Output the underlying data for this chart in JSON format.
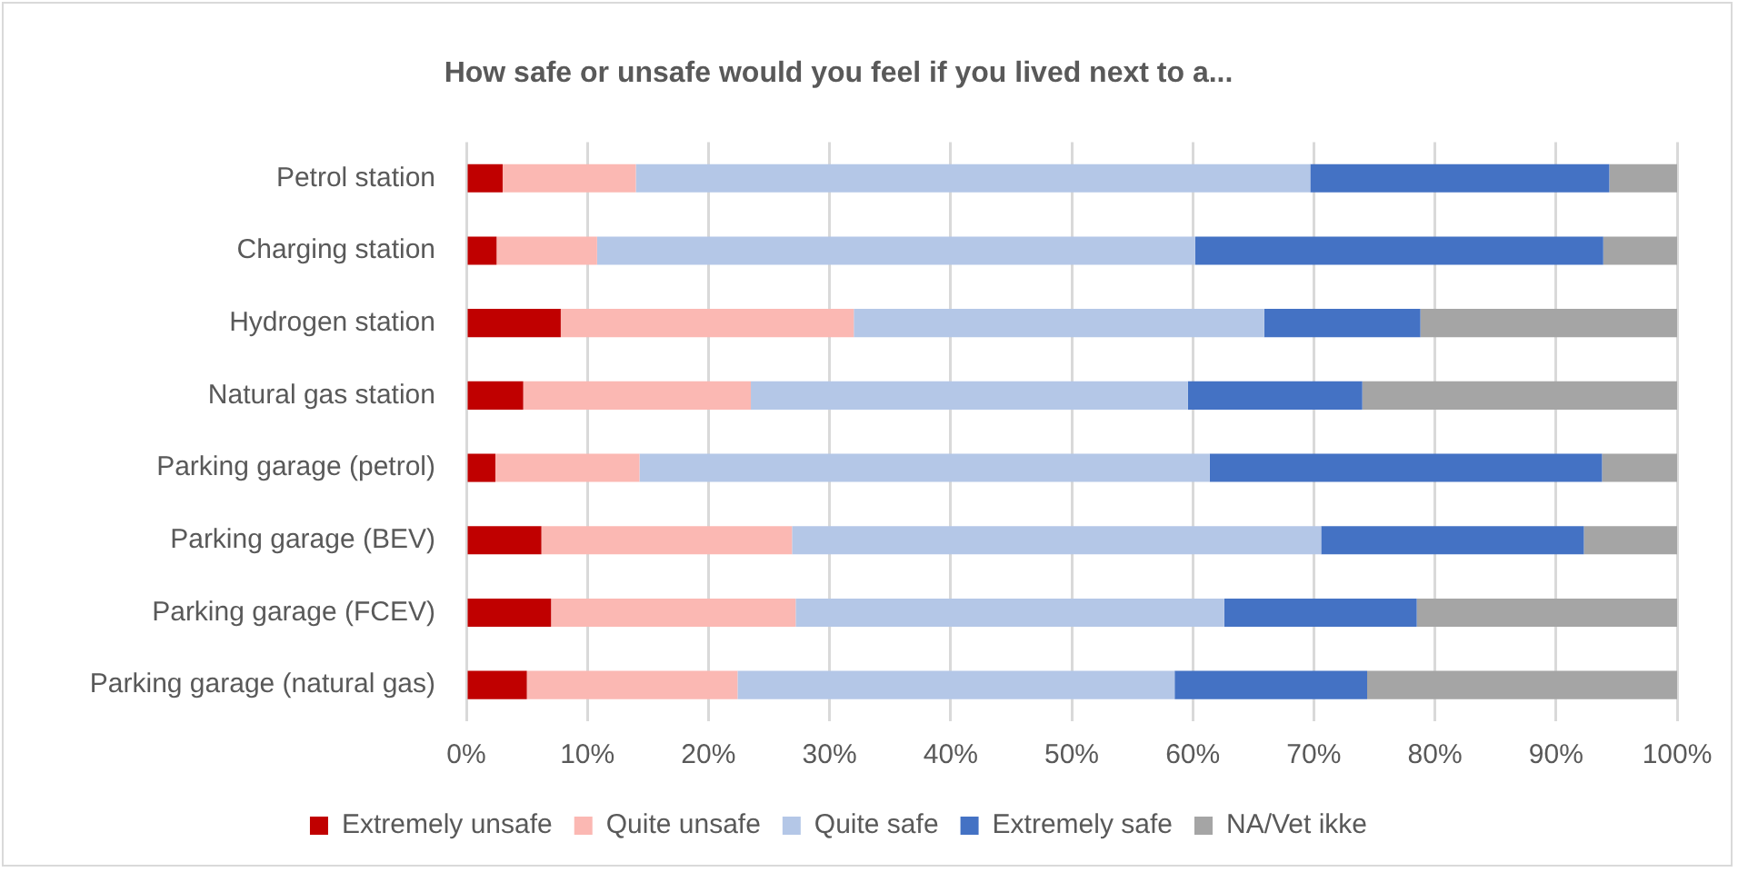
{
  "chart_data": {
    "type": "bar",
    "orientation": "horizontal",
    "stacked": true,
    "title": "How safe or unsafe would you feel if you lived next to a...",
    "categories": [
      "Petrol station",
      "Charging station",
      "Hydrogen station",
      "Natural gas station",
      "Parking garage (petrol)",
      "Parking garage (BEV)",
      "Parking garage (FCEV)",
      "Parking garage (natural gas)"
    ],
    "series": [
      {
        "name": "Extremely unsafe",
        "color": "#c00000",
        "values": [
          3.0,
          2.5,
          7.8,
          4.7,
          2.4,
          6.2,
          7.0,
          5.0
        ]
      },
      {
        "name": "Quite unsafe",
        "color": "#fbb8b3",
        "values": [
          11.0,
          8.3,
          24.2,
          18.8,
          11.9,
          20.7,
          20.2,
          17.4
        ]
      },
      {
        "name": "Quite safe",
        "color": "#b4c7e7",
        "values": [
          55.7,
          49.4,
          33.9,
          36.1,
          47.1,
          43.7,
          35.4,
          36.1
        ]
      },
      {
        "name": "Extremely safe",
        "color": "#4472c4",
        "values": [
          24.7,
          33.7,
          12.9,
          14.4,
          32.4,
          21.7,
          15.9,
          15.9
        ]
      },
      {
        "name": "NA/Vet ikke",
        "color": "#a5a5a5",
        "values": [
          5.6,
          6.1,
          21.2,
          26.0,
          6.2,
          7.7,
          21.5,
          25.6
        ]
      }
    ],
    "xlim": [
      0,
      100
    ],
    "xticks": [
      {
        "value": 0,
        "label": "0%"
      },
      {
        "value": 10,
        "label": "10%"
      },
      {
        "value": 20,
        "label": "20%"
      },
      {
        "value": 30,
        "label": "30%"
      },
      {
        "value": 40,
        "label": "40%"
      },
      {
        "value": 50,
        "label": "50%"
      },
      {
        "value": 60,
        "label": "60%"
      },
      {
        "value": 70,
        "label": "70%"
      },
      {
        "value": 80,
        "label": "80%"
      },
      {
        "value": 90,
        "label": "90%"
      },
      {
        "value": 100,
        "label": "100%"
      }
    ],
    "grid": "x",
    "legend": "bottom"
  }
}
